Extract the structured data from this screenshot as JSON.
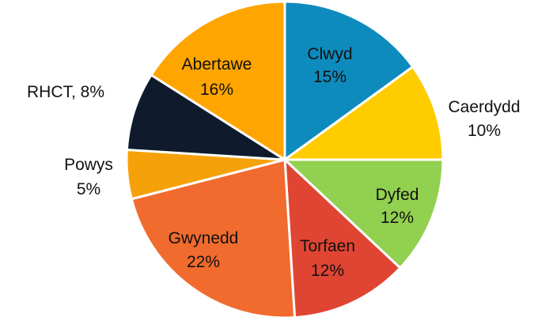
{
  "chart_data": {
    "type": "pie",
    "title": "",
    "slices": [
      {
        "name": "Clwyd",
        "value": 15,
        "label": "15%",
        "color": "#0e8bbd"
      },
      {
        "name": "Caerdydd",
        "value": 10,
        "label": "10%",
        "color": "#ffcc00"
      },
      {
        "name": "Dyfed",
        "value": 12,
        "label": "12%",
        "color": "#92d050"
      },
      {
        "name": "Torfaen",
        "value": 12,
        "label": "12%",
        "color": "#e04533"
      },
      {
        "name": "Gwynedd",
        "value": 22,
        "label": "22%",
        "color": "#f06b2d"
      },
      {
        "name": "Powys",
        "value": 5,
        "label": "5%",
        "color": "#f5a20a"
      },
      {
        "name": "RHCT",
        "value": 8,
        "label": "RHCT, 8%",
        "color": "#0f1b2d"
      },
      {
        "name": "Abertawe",
        "value": 16,
        "label": "16%",
        "color": "#ffa500"
      }
    ]
  }
}
